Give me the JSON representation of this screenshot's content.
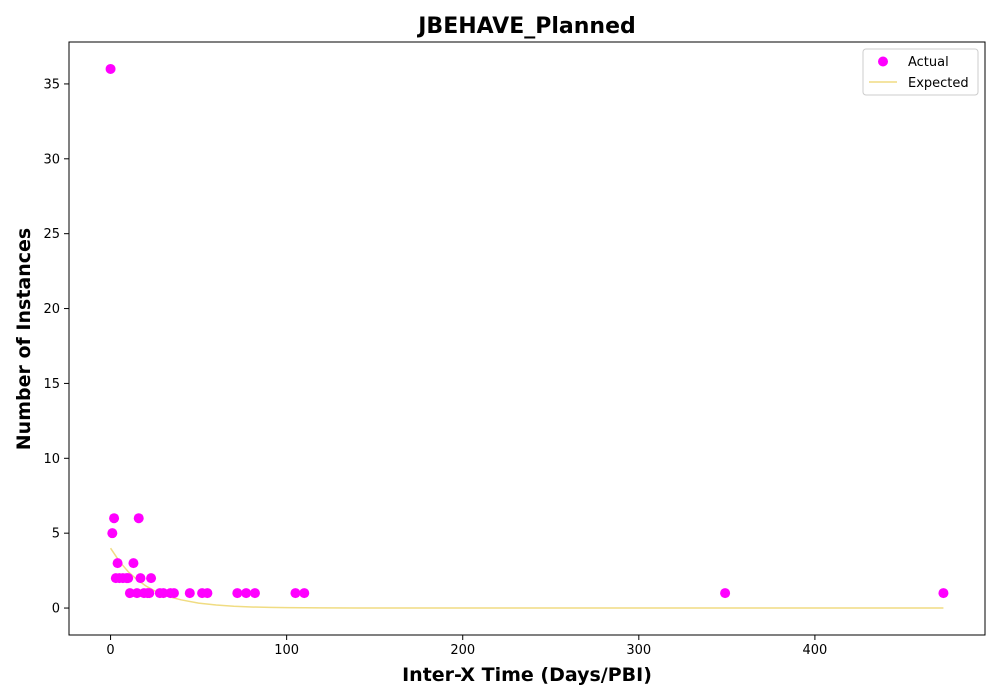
{
  "chart_data": {
    "type": "scatter",
    "title": "JBEHAVE_Planned",
    "xlabel": "Inter-X Time (Days/PBI)",
    "ylabel": "Number of Instances",
    "xlim": [
      -23.6,
      496.6
    ],
    "ylim": [
      -1.8,
      37.8
    ],
    "xticks": [
      0,
      100,
      200,
      300,
      400
    ],
    "yticks": [
      0,
      5,
      10,
      15,
      20,
      25,
      30,
      35
    ],
    "legend": {
      "position": "top-right",
      "entries": [
        "Actual",
        "Expected"
      ]
    },
    "grid": false,
    "colors": {
      "actual": "#ff00ff",
      "expected": "#f0dc82"
    },
    "series": [
      {
        "name": "Actual",
        "kind": "scatter",
        "x": [
          0,
          1,
          2,
          3,
          4,
          5,
          7,
          9,
          10,
          11,
          13,
          15,
          16,
          17,
          19,
          21,
          22,
          23,
          28,
          30,
          34,
          36,
          45,
          52,
          55,
          72,
          77,
          82,
          105,
          110,
          349,
          473
        ],
        "y": [
          36,
          5,
          6,
          2,
          3,
          2,
          2,
          2,
          2,
          1,
          3,
          1,
          6,
          2,
          1,
          1,
          1,
          2,
          1,
          1,
          1,
          1,
          1,
          1,
          1,
          1,
          1,
          1,
          1,
          1,
          1,
          1
        ]
      },
      {
        "name": "Expected",
        "kind": "line",
        "x": [
          0,
          5,
          10,
          15,
          20,
          25,
          30,
          35,
          40,
          50,
          60,
          70,
          80,
          90,
          100,
          120,
          140,
          160,
          200,
          250,
          300,
          350,
          400,
          450,
          473
        ],
        "y": [
          4.0,
          3.12,
          2.43,
          1.9,
          1.48,
          1.15,
          0.9,
          0.7,
          0.55,
          0.33,
          0.2,
          0.12,
          0.07,
          0.045,
          0.027,
          0.01,
          0.004,
          0.0015,
          0.0,
          0.0,
          0.0,
          0.0,
          0.0,
          0.0,
          0.0
        ]
      }
    ]
  }
}
